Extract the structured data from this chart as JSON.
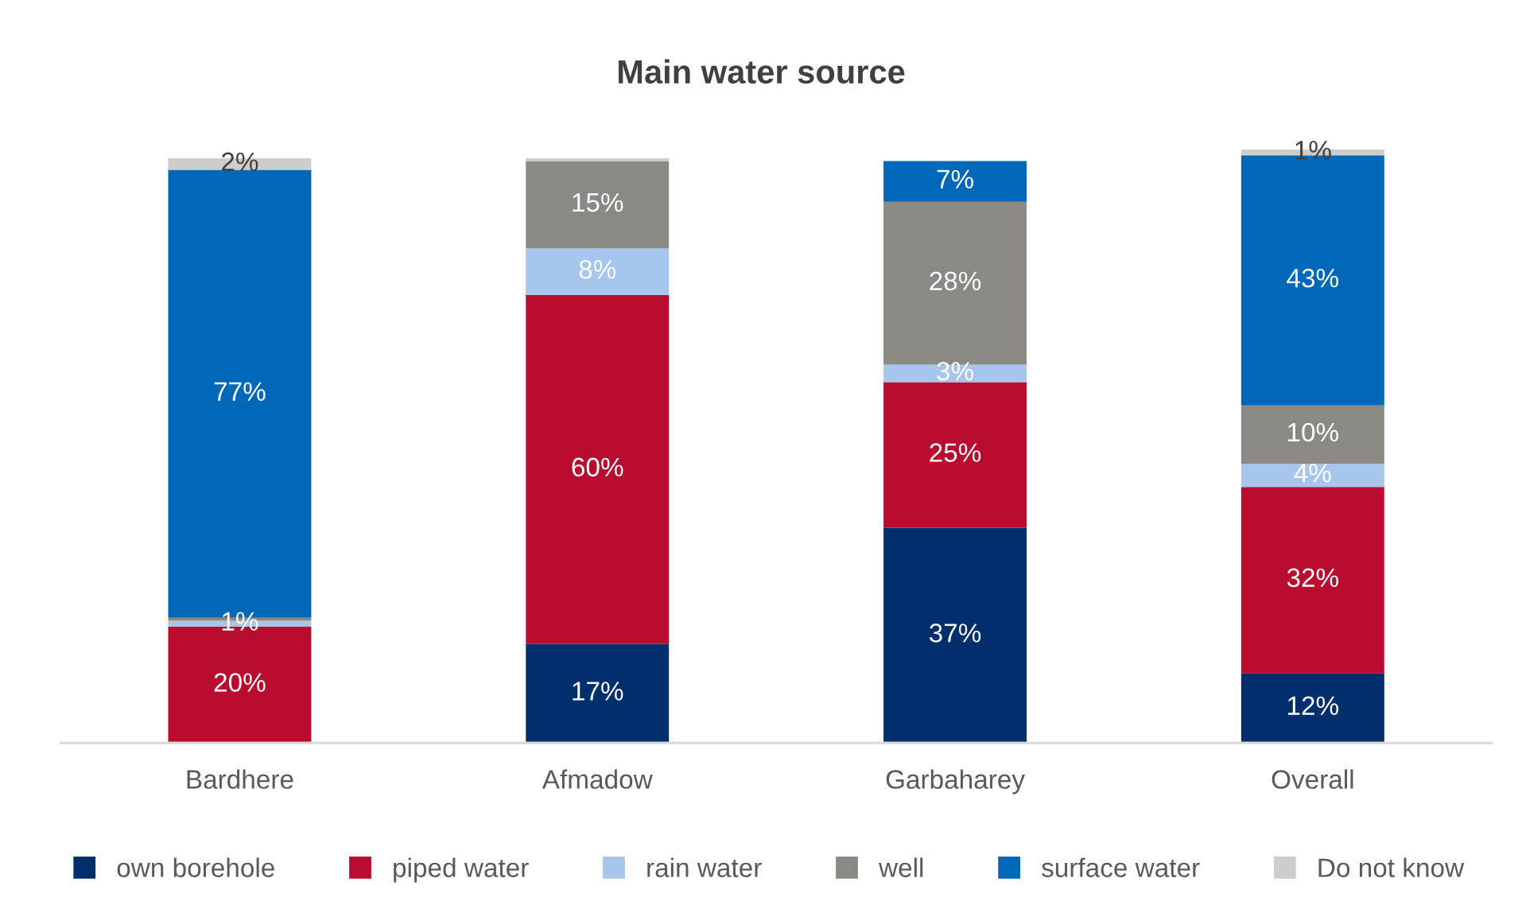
{
  "chart_data": {
    "type": "bar",
    "title": "Main water source",
    "categories": [
      "Bardhere",
      "Afmadow",
      "Garbaharey",
      "Overall"
    ],
    "stacked": true,
    "legend": "bottom",
    "series": [
      {
        "name": "own borehole",
        "color": "#002f6c",
        "values": [
          null,
          17,
          37,
          12
        ],
        "value_labels": [
          null,
          "17%",
          "37%",
          "12%"
        ]
      },
      {
        "name": "piped water",
        "color": "#ba0c2f",
        "values": [
          20,
          60,
          25,
          32
        ],
        "value_labels": [
          "20%",
          "60%",
          "25%",
          "32%"
        ]
      },
      {
        "name": "rain water",
        "color": "#a7c6ed",
        "values": [
          1,
          8,
          3,
          4
        ],
        "value_labels": [
          "1%",
          "8%",
          "3%",
          "4%"
        ]
      },
      {
        "name": "well",
        "color": "#8c8985",
        "values": [
          0.5,
          15,
          28,
          10
        ],
        "value_labels": [
          null,
          "15%",
          "28%",
          "10%"
        ]
      },
      {
        "name": "surface water",
        "color": "#0067b9",
        "values": [
          77,
          null,
          7,
          43
        ],
        "value_labels": [
          "77%",
          null,
          "7%",
          "43%"
        ]
      },
      {
        "name": "Do not know",
        "color": "#cfcdc9",
        "values": [
          2,
          0.5,
          null,
          1
        ],
        "value_labels": [
          "2%",
          null,
          null,
          "1%"
        ]
      }
    ]
  }
}
